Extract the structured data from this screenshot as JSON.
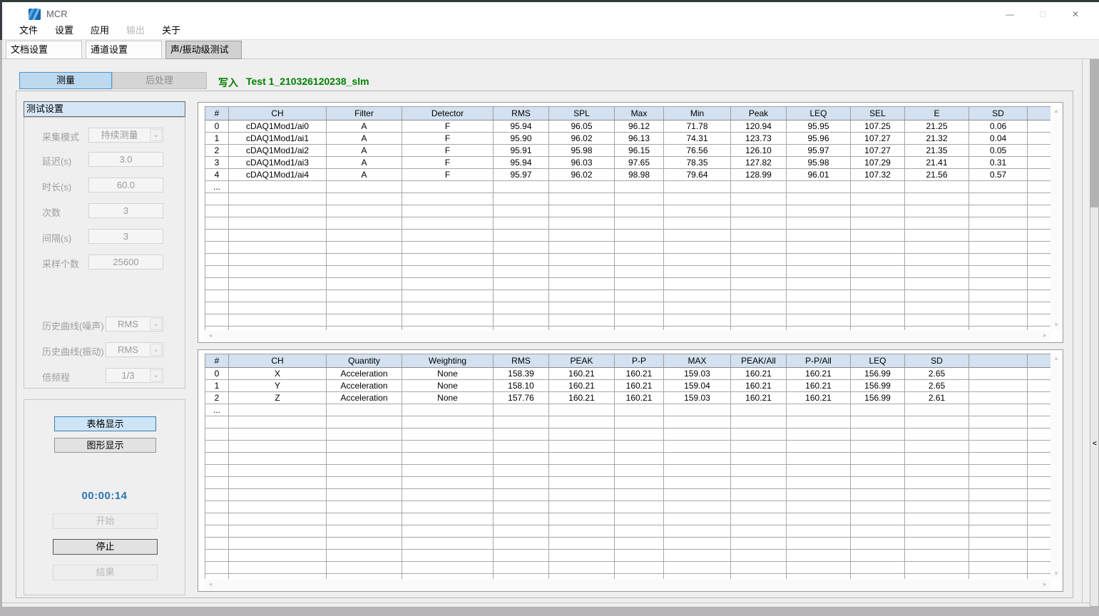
{
  "colors": {
    "accent_green": "#008000",
    "timer_blue": "#2e74b5",
    "table_header_bg": "#d3e1f0",
    "selected_button_bg": "#bdd9ef",
    "selected_button_border": "#4f94cd"
  },
  "icons": {
    "app_logo": "app-logo",
    "dropdown_chevron": "⌄",
    "scroll_up": "▲",
    "scroll_down": "▼",
    "scroll_left": "◄",
    "scroll_right": "►",
    "collapse_left": "<",
    "minimize": "—",
    "maximize": "□",
    "close": "✕"
  },
  "window": {
    "title": "MCR"
  },
  "menu_bar": {
    "items": [
      {
        "label": "文件",
        "enabled": true
      },
      {
        "label": "设置",
        "enabled": true
      },
      {
        "label": "应用",
        "enabled": true
      },
      {
        "label": "输出",
        "enabled": false
      },
      {
        "label": "关于",
        "enabled": true
      }
    ]
  },
  "tab_bar": {
    "tabs": [
      {
        "label": "文档设置",
        "active": false
      },
      {
        "label": "通道设置",
        "active": false
      },
      {
        "label": "声/振动级测试",
        "active": true
      }
    ]
  },
  "toolbar": {
    "measure_button": "测量",
    "postprocess_button": "后处理",
    "write_label": "写入",
    "session_name": "Test 1_210326120238_slm"
  },
  "settings": {
    "panel_title": "测试设置",
    "fields": [
      {
        "label": "采集模式",
        "value": "持续测量",
        "type": "dropdown"
      },
      {
        "label": "延迟(s)",
        "value": "3.0",
        "type": "text"
      },
      {
        "label": "时长(s)",
        "value": "60.0",
        "type": "text"
      },
      {
        "label": "次数",
        "value": "3",
        "type": "text"
      },
      {
        "label": "间隔(s)",
        "value": "3",
        "type": "text"
      },
      {
        "label": "采样个数",
        "value": "25600",
        "type": "text"
      },
      {
        "label": "历史曲线(噪声)",
        "value": "RMS",
        "type": "dropdown"
      },
      {
        "label": "历史曲线(振动)",
        "value": "RMS",
        "type": "dropdown"
      },
      {
        "label": "倍频程",
        "value": "1/3",
        "type": "dropdown"
      }
    ]
  },
  "controls": {
    "table_display_button": "表格显示",
    "graph_display_button": "图形显示",
    "timer": "00:00:14",
    "start_button": "开始",
    "stop_button": "停止",
    "result_button": "结果"
  },
  "sound_table": {
    "headers": [
      "#",
      "CH",
      "Filter",
      "Detector",
      "RMS",
      "SPL",
      "Max",
      "Min",
      "Peak",
      "LEQ",
      "SEL",
      "E",
      "SD",
      ""
    ],
    "rows": [
      [
        "0",
        "cDAQ1Mod1/ai0",
        "A",
        "F",
        "95.94",
        "96.05",
        "96.12",
        "71.78",
        "120.94",
        "95.95",
        "107.25",
        "21.25",
        "0.06",
        ""
      ],
      [
        "1",
        "cDAQ1Mod1/ai1",
        "A",
        "F",
        "95.90",
        "96.02",
        "96.13",
        "74.31",
        "123.73",
        "95.96",
        "107.27",
        "21.32",
        "0.04",
        ""
      ],
      [
        "2",
        "cDAQ1Mod1/ai2",
        "A",
        "F",
        "95.91",
        "95.98",
        "96.15",
        "76.56",
        "126.10",
        "95.97",
        "107.27",
        "21.35",
        "0.05",
        ""
      ],
      [
        "3",
        "cDAQ1Mod1/ai3",
        "A",
        "F",
        "95.94",
        "96.03",
        "97.65",
        "78.35",
        "127.82",
        "95.98",
        "107.29",
        "21.41",
        "0.31",
        ""
      ],
      [
        "4",
        "cDAQ1Mod1/ai4",
        "A",
        "F",
        "95.97",
        "96.02",
        "98.98",
        "79.64",
        "128.99",
        "96.01",
        "107.32",
        "21.56",
        "0.57",
        ""
      ]
    ],
    "ellipsis": "..."
  },
  "vibration_table": {
    "headers": [
      "#",
      "CH",
      "Quantity",
      "Weighting",
      "RMS",
      "PEAK",
      "P-P",
      "MAX",
      "PEAK/All",
      "P-P/All",
      "LEQ",
      "SD",
      "",
      ""
    ],
    "rows": [
      [
        "0",
        "X",
        "Acceleration",
        "None",
        "158.39",
        "160.21",
        "160.21",
        "159.03",
        "160.21",
        "160.21",
        "156.99",
        "2.65",
        "",
        ""
      ],
      [
        "1",
        "Y",
        "Acceleration",
        "None",
        "158.10",
        "160.21",
        "160.21",
        "159.04",
        "160.21",
        "160.21",
        "156.99",
        "2.65",
        "",
        ""
      ],
      [
        "2",
        "Z",
        "Acceleration",
        "None",
        "157.76",
        "160.21",
        "160.21",
        "159.03",
        "160.21",
        "160.21",
        "156.99",
        "2.61",
        "",
        ""
      ]
    ],
    "ellipsis": "..."
  }
}
